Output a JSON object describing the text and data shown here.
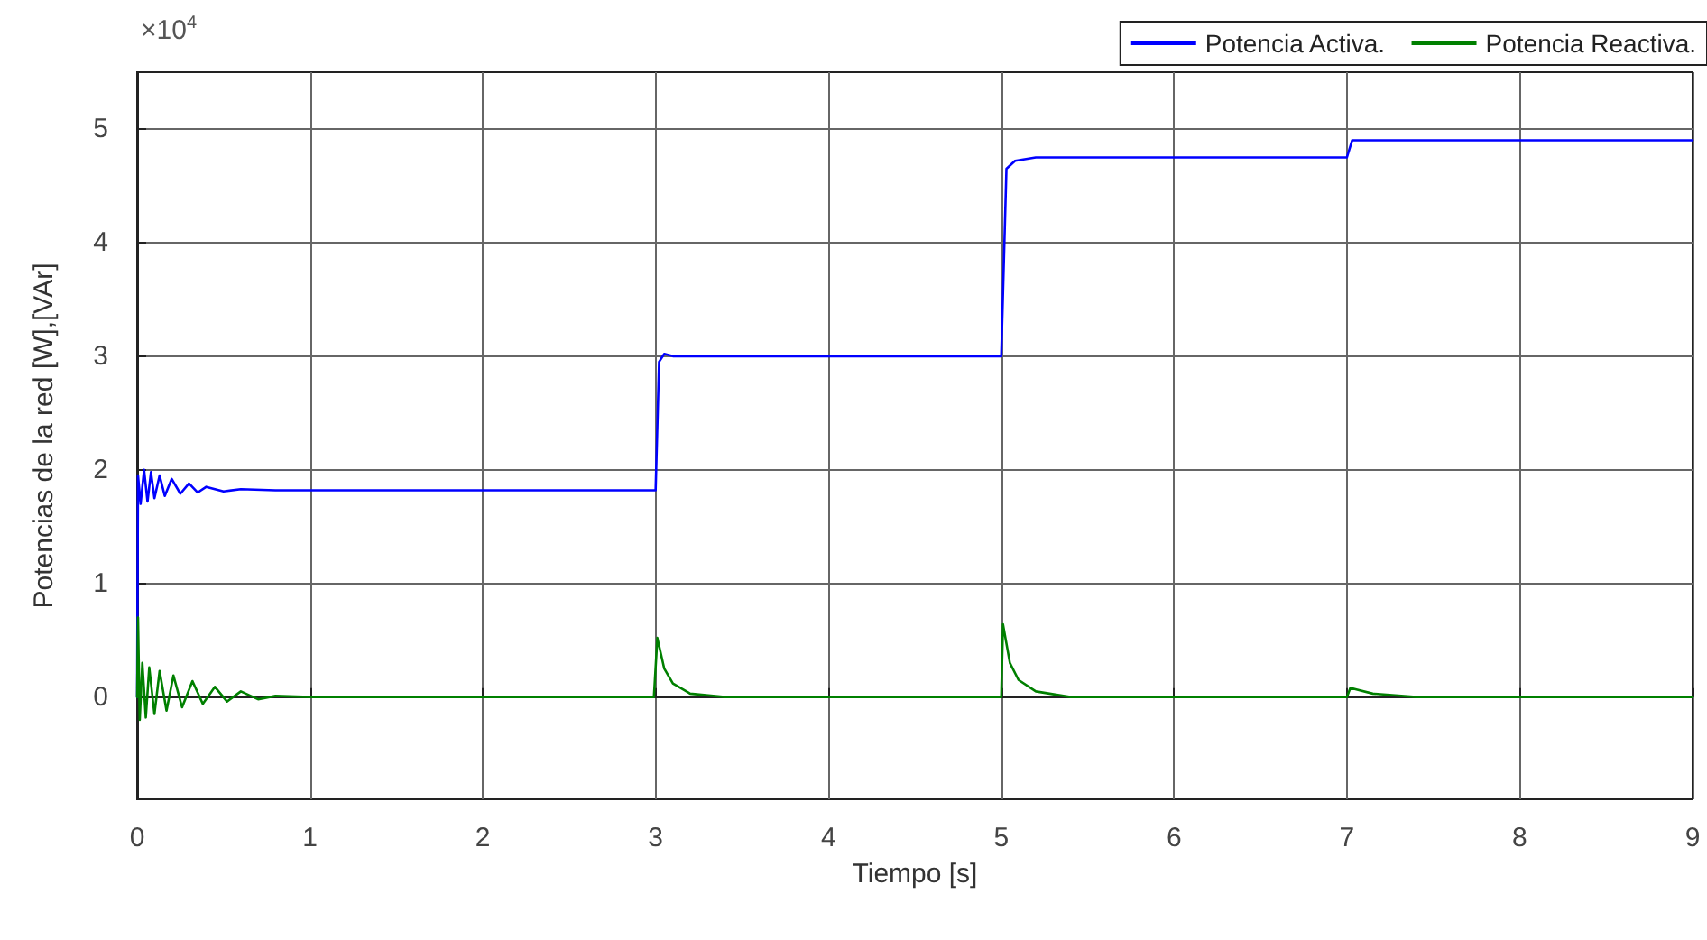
{
  "chart_data": {
    "type": "line",
    "xlabel": "Tiempo [s]",
    "ylabel": "Potencias de la red [W],[VAr]",
    "annotations": [
      "×10$^{4}$"
    ],
    "xlim": [
      0,
      9
    ],
    "xticks": [
      0,
      1,
      2,
      3,
      4,
      5,
      6,
      7,
      8,
      9
    ],
    "ylim": [
      -0.9,
      5.5
    ],
    "yticks": [
      0,
      1,
      2,
      3,
      4,
      5
    ],
    "grid": true,
    "legend": "top right",
    "marker": "none",
    "line_style": "solid",
    "series": [
      {
        "name": "Potencia Activa.",
        "color": "#0000ff",
        "x": [
          0,
          0.005,
          0.02,
          0.04,
          0.06,
          0.08,
          0.1,
          0.13,
          0.16,
          0.2,
          0.25,
          0.3,
          0.35,
          0.4,
          0.5,
          0.6,
          0.8,
          3.0,
          3.02,
          3.05,
          3.1,
          5.0,
          5.03,
          5.08,
          5.2,
          7.0,
          7.03,
          9
        ],
        "values": [
          0,
          1.95,
          1.7,
          2.0,
          1.72,
          1.98,
          1.75,
          1.95,
          1.77,
          1.92,
          1.79,
          1.88,
          1.8,
          1.85,
          1.81,
          1.83,
          1.82,
          1.82,
          2.95,
          3.02,
          3.0,
          3.0,
          4.65,
          4.72,
          4.75,
          4.75,
          4.9,
          4.9
        ]
      },
      {
        "name": "Potencia Reactiva.",
        "color": "#008000",
        "x": [
          0,
          0.005,
          0.015,
          0.03,
          0.05,
          0.07,
          0.1,
          0.13,
          0.17,
          0.21,
          0.26,
          0.32,
          0.38,
          0.45,
          0.52,
          0.6,
          0.7,
          0.8,
          1,
          2.99,
          3.01,
          3.05,
          3.1,
          3.2,
          3.4,
          5.0,
          5.01,
          5.05,
          5.1,
          5.2,
          5.4,
          7.0,
          7.02,
          7.15,
          7.4,
          9
        ],
        "values": [
          0,
          0.7,
          -0.2,
          0.3,
          -0.18,
          0.26,
          -0.15,
          0.23,
          -0.12,
          0.19,
          -0.09,
          0.14,
          -0.06,
          0.09,
          -0.04,
          0.05,
          -0.02,
          0.01,
          0,
          0,
          0.52,
          0.25,
          0.12,
          0.03,
          0,
          0,
          0.64,
          0.3,
          0.15,
          0.05,
          0,
          0,
          0.08,
          0.03,
          0,
          0
        ]
      }
    ]
  }
}
